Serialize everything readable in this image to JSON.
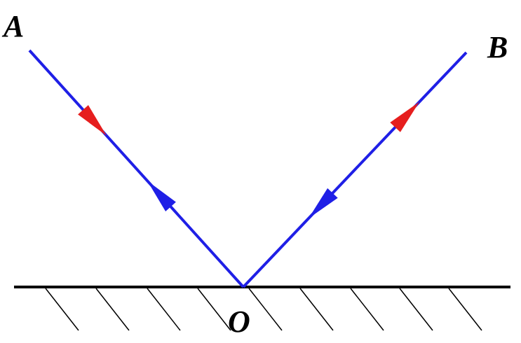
{
  "points": [
    {
      "label": "A"
    },
    {
      "label": "B"
    },
    {
      "label": "O"
    }
  ]
}
